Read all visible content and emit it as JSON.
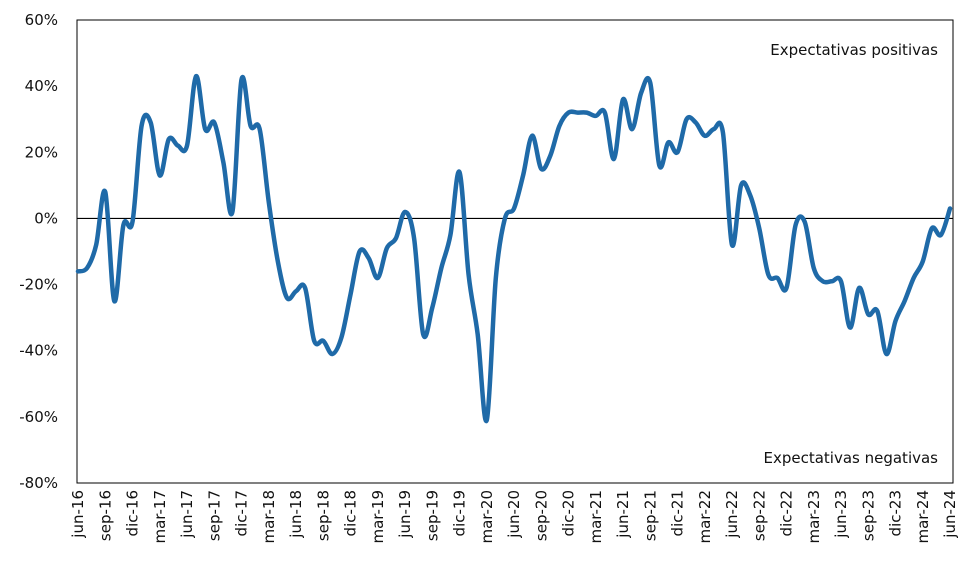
{
  "chart_data": {
    "type": "line",
    "annotations": [
      "Expectativas positivas",
      "Expectativas negativas"
    ],
    "categories": [
      "jun-16",
      null,
      null,
      "sep-16",
      null,
      null,
      "dic-16",
      null,
      null,
      "mar-17",
      null,
      null,
      "jun-17",
      null,
      null,
      "sep-17",
      null,
      null,
      "dic-17",
      null,
      null,
      "mar-18",
      null,
      null,
      "jun-18",
      null,
      null,
      "sep-18",
      null,
      null,
      "dic-18",
      null,
      null,
      "mar-19",
      null,
      null,
      "jun-19",
      null,
      null,
      "sep-19",
      null,
      null,
      "dic-19",
      null,
      null,
      "mar-20",
      null,
      null,
      "jun-20",
      null,
      null,
      "sep-20",
      null,
      null,
      "dic-20",
      null,
      null,
      "mar-21",
      null,
      null,
      "jun-21",
      null,
      null,
      "sep-21",
      null,
      null,
      "dic-21",
      null,
      null,
      "mar-22",
      null,
      null,
      "jun-22",
      null,
      null,
      "sep-22",
      null,
      null,
      "dic-22",
      null,
      null,
      "mar-23",
      null,
      null,
      "jun-23",
      null,
      null,
      "sep-23",
      null,
      null,
      "dic-23",
      null,
      null,
      "mar-24",
      null,
      null,
      "jun-24"
    ],
    "series": [
      {
        "color": "#1f6aa8",
        "values": [
          -16,
          -15,
          -8,
          8,
          -25,
          -2,
          -1,
          28,
          29,
          13,
          24,
          22,
          22,
          43,
          27,
          29,
          17,
          2,
          42,
          28,
          27,
          5,
          -13,
          -24,
          -22,
          -21,
          -37,
          -37,
          -41,
          -36,
          -23,
          -10,
          -12,
          -18,
          -9,
          -6,
          2,
          -6,
          -35,
          -27,
          -15,
          -5,
          14,
          -17,
          -35,
          -61,
          -18,
          0,
          3,
          13,
          25,
          15,
          19,
          28,
          32,
          32,
          32,
          31,
          32,
          18,
          36,
          27,
          38,
          41,
          16,
          23,
          20,
          30,
          29,
          25,
          27,
          26,
          -8,
          10,
          7,
          -3,
          -17,
          -18,
          -21,
          -2,
          -1,
          -15,
          -19,
          -19,
          -19,
          -33,
          -21,
          -29,
          -28,
          -41,
          -31,
          -25,
          -18,
          -13,
          -3,
          -5,
          3
        ]
      }
    ],
    "ylim": [
      -80,
      60
    ],
    "yticks": [
      {
        "value": -80,
        "label": "-80%"
      },
      {
        "value": -60,
        "label": "-60%"
      },
      {
        "value": -40,
        "label": "-40%"
      },
      {
        "value": -20,
        "label": "-20%"
      },
      {
        "value": 0,
        "label": "0%"
      },
      {
        "value": 20,
        "label": "20%"
      },
      {
        "value": 40,
        "label": "40%"
      },
      {
        "value": 60,
        "label": "60%"
      }
    ]
  }
}
